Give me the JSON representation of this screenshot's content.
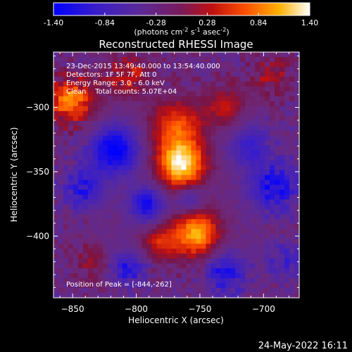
{
  "chart_data": {
    "type": "heatmap",
    "title": "Reconstructed RHESSI Image",
    "xlabel": "Heliocentric X (arcsec)",
    "ylabel": "Heliocentric Y (arcsec)",
    "xlim": [
      -865,
      -672
    ],
    "ylim": [
      -448,
      -257
    ],
    "xticks": [
      -850,
      -800,
      -750,
      -700
    ],
    "yticks": [
      -300,
      -350,
      -400
    ],
    "colorbar": {
      "min": -1.4,
      "max": 1.4,
      "ticks": [
        "-1.40",
        "-0.84",
        "-0.28",
        "0.28",
        "0.84",
        "1.40"
      ],
      "units_label": "(photons cm",
      "units_exp1": "-2",
      "units_mid1": " s",
      "units_exp2": "-1",
      "units_mid2": " asec",
      "units_exp3": "-2",
      "units_end": ")"
    },
    "annotations": {
      "line1": "23-Dec-2015 13:49:40.000 to 13:54:40.000",
      "line2": "Detectors: 1F 5F 7F, Att 0",
      "line3": "Energy Range: 3.0 - 6.0 keV",
      "line4": "Clean    Total counts: 5.07E+04",
      "peak": "Position of Peak = [-844,-262]"
    },
    "peak_position": [
      -844,
      -262
    ]
  },
  "timestamp": "24-May-2022 16:11"
}
